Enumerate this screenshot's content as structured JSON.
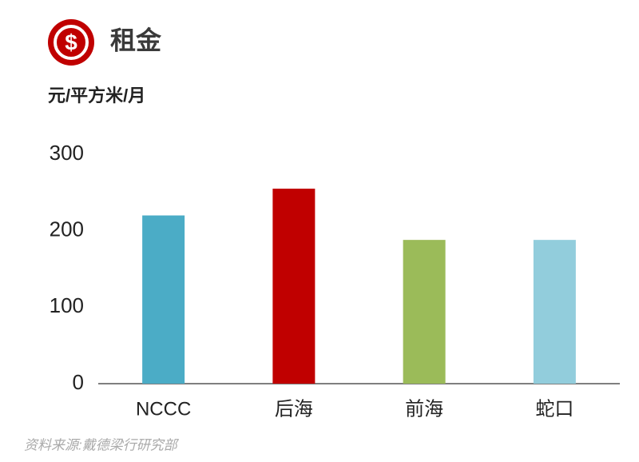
{
  "chart_data": {
    "type": "bar",
    "title": "租金",
    "y_label": "元/平方米/月",
    "categories": [
      "NCCC",
      "后海",
      "前海",
      "蛇口"
    ],
    "values": [
      220,
      255,
      188,
      188
    ],
    "colors": [
      "#4bacc6",
      "#c00000",
      "#9bbb59",
      "#92cddc"
    ],
    "ylim": [
      0,
      300
    ],
    "yticks": [
      0,
      100,
      200,
      300
    ],
    "grid": false,
    "source": "资料来源:戴德梁行研究部"
  }
}
